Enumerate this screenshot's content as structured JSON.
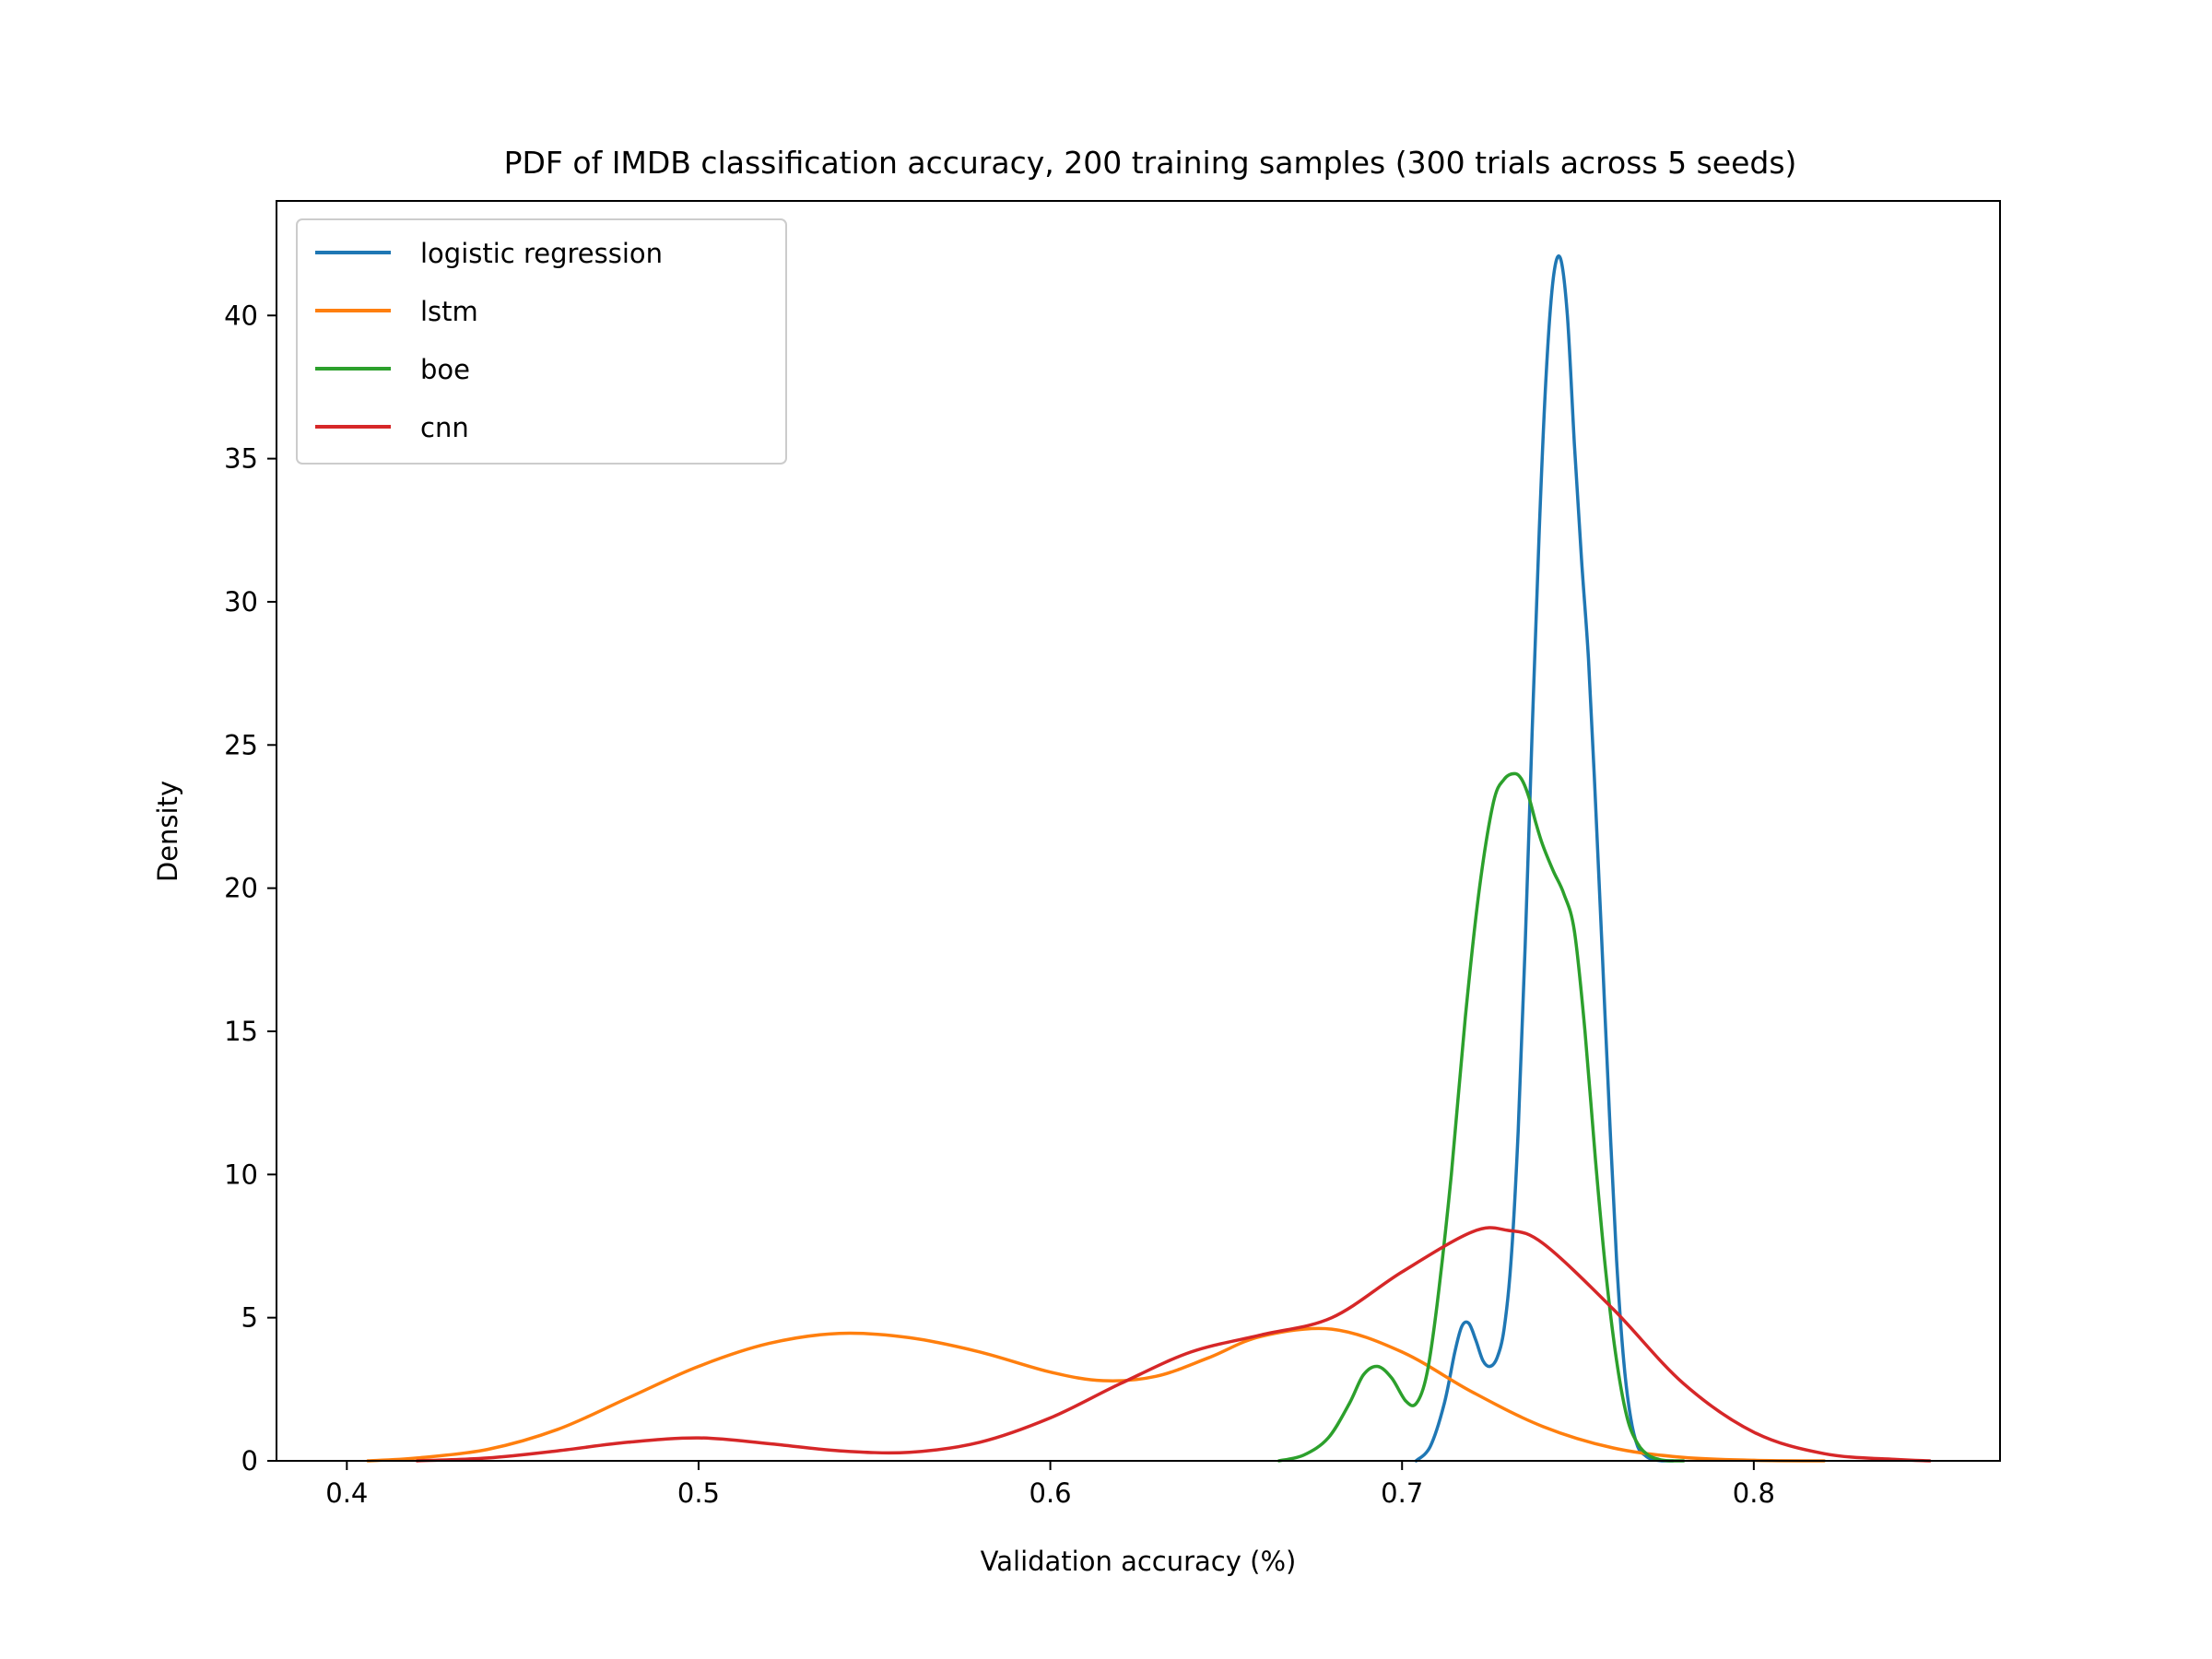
{
  "chart_data": {
    "type": "line",
    "title": "PDF of IMDB classification accuracy, 200 training samples (300 trials across 5 seeds)",
    "xlabel": "Validation accuracy (%)",
    "ylabel": "Density",
    "xlim": [
      0.38,
      0.87
    ],
    "ylim": [
      0,
      44
    ],
    "xticks": [
      0.4,
      0.5,
      0.6,
      0.7,
      0.8
    ],
    "xtick_labels": [
      "0.4",
      "0.5",
      "0.6",
      "0.7",
      "0.8"
    ],
    "yticks": [
      0,
      5,
      10,
      15,
      20,
      25,
      30,
      35,
      40
    ],
    "ytick_labels": [
      "0",
      "5",
      "10",
      "15",
      "20",
      "25",
      "30",
      "35",
      "40"
    ],
    "grid": false,
    "legend_position": "upper-left",
    "series": [
      {
        "name": "logistic regression",
        "color": "#1f77b4",
        "x": [
          0.704,
          0.708,
          0.712,
          0.715,
          0.717,
          0.719,
          0.721,
          0.723,
          0.725,
          0.727,
          0.729,
          0.731,
          0.733,
          0.735,
          0.737,
          0.739,
          0.741,
          0.743,
          0.745,
          0.747,
          0.749,
          0.751,
          0.753,
          0.755,
          0.757,
          0.759,
          0.761,
          0.763,
          0.765,
          0.767,
          0.769,
          0.771,
          0.774,
          0.777
        ],
        "y": [
          0,
          0.5,
          2.0,
          3.8,
          4.7,
          4.8,
          4.2,
          3.5,
          3.3,
          3.6,
          4.6,
          7.0,
          11.5,
          18.0,
          25.5,
          32.5,
          38.0,
          41.3,
          42.0,
          40.0,
          35.5,
          31.5,
          28.0,
          23.0,
          17.5,
          12.0,
          7.0,
          3.5,
          1.5,
          0.5,
          0.2,
          0.05,
          0,
          0
        ]
      },
      {
        "name": "lstm",
        "color": "#ff7f0e",
        "x": [
          0.406,
          0.42,
          0.44,
          0.46,
          0.48,
          0.5,
          0.52,
          0.54,
          0.56,
          0.58,
          0.6,
          0.615,
          0.63,
          0.645,
          0.66,
          0.68,
          0.7,
          0.72,
          0.74,
          0.76,
          0.78,
          0.8,
          0.82
        ],
        "y": [
          0,
          0.1,
          0.4,
          1.1,
          2.2,
          3.3,
          4.1,
          4.45,
          4.3,
          3.8,
          3.1,
          2.8,
          2.95,
          3.6,
          4.35,
          4.6,
          3.8,
          2.4,
          1.2,
          0.45,
          0.12,
          0.02,
          0
        ]
      },
      {
        "name": "boe",
        "color": "#2ca02c",
        "x": [
          0.665,
          0.672,
          0.679,
          0.685,
          0.689,
          0.693,
          0.697,
          0.701,
          0.704,
          0.707,
          0.71,
          0.714,
          0.718,
          0.722,
          0.726,
          0.729,
          0.732,
          0.734,
          0.736,
          0.738,
          0.74,
          0.743,
          0.746,
          0.749,
          0.752,
          0.755,
          0.758,
          0.761,
          0.764,
          0.767,
          0.77,
          0.773,
          0.776,
          0.78
        ],
        "y": [
          0,
          0.2,
          0.8,
          2.0,
          3.0,
          3.3,
          2.9,
          2.1,
          2.0,
          3.0,
          5.5,
          10.0,
          15.5,
          20.0,
          23.0,
          23.8,
          24.0,
          23.8,
          23.2,
          22.3,
          21.5,
          20.6,
          19.8,
          18.5,
          15.0,
          10.5,
          6.5,
          3.5,
          1.5,
          0.6,
          0.2,
          0.05,
          0,
          0
        ]
      },
      {
        "name": "cnn",
        "color": "#d62728",
        "x": [
          0.42,
          0.44,
          0.46,
          0.48,
          0.5,
          0.52,
          0.54,
          0.56,
          0.58,
          0.6,
          0.62,
          0.64,
          0.66,
          0.68,
          0.7,
          0.72,
          0.73,
          0.74,
          0.76,
          0.78,
          0.8,
          0.82,
          0.84,
          0.85
        ],
        "y": [
          0,
          0.1,
          0.35,
          0.65,
          0.8,
          0.6,
          0.35,
          0.3,
          0.65,
          1.5,
          2.7,
          3.8,
          4.4,
          5.0,
          6.6,
          8.0,
          8.05,
          7.6,
          5.3,
          2.7,
          1.0,
          0.25,
          0.05,
          0
        ]
      }
    ]
  }
}
